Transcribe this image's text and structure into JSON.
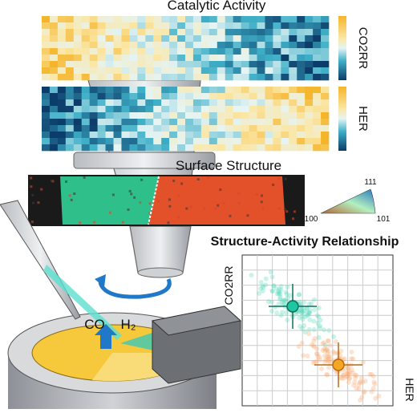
{
  "activity": {
    "title": "Catalytic Activity",
    "maps": [
      {
        "label": "CO2RR"
      },
      {
        "label": "HER"
      }
    ]
  },
  "structure": {
    "title": "Surface Structure",
    "pole_figure": {
      "top": "111",
      "left": "100",
      "right": "101"
    }
  },
  "reaction": {
    "products": [
      "CO",
      "H₂"
    ]
  },
  "relationship": {
    "title": "Structure-Activity Relationship",
    "y_label": "CO2RR",
    "x_label": "HER"
  }
}
